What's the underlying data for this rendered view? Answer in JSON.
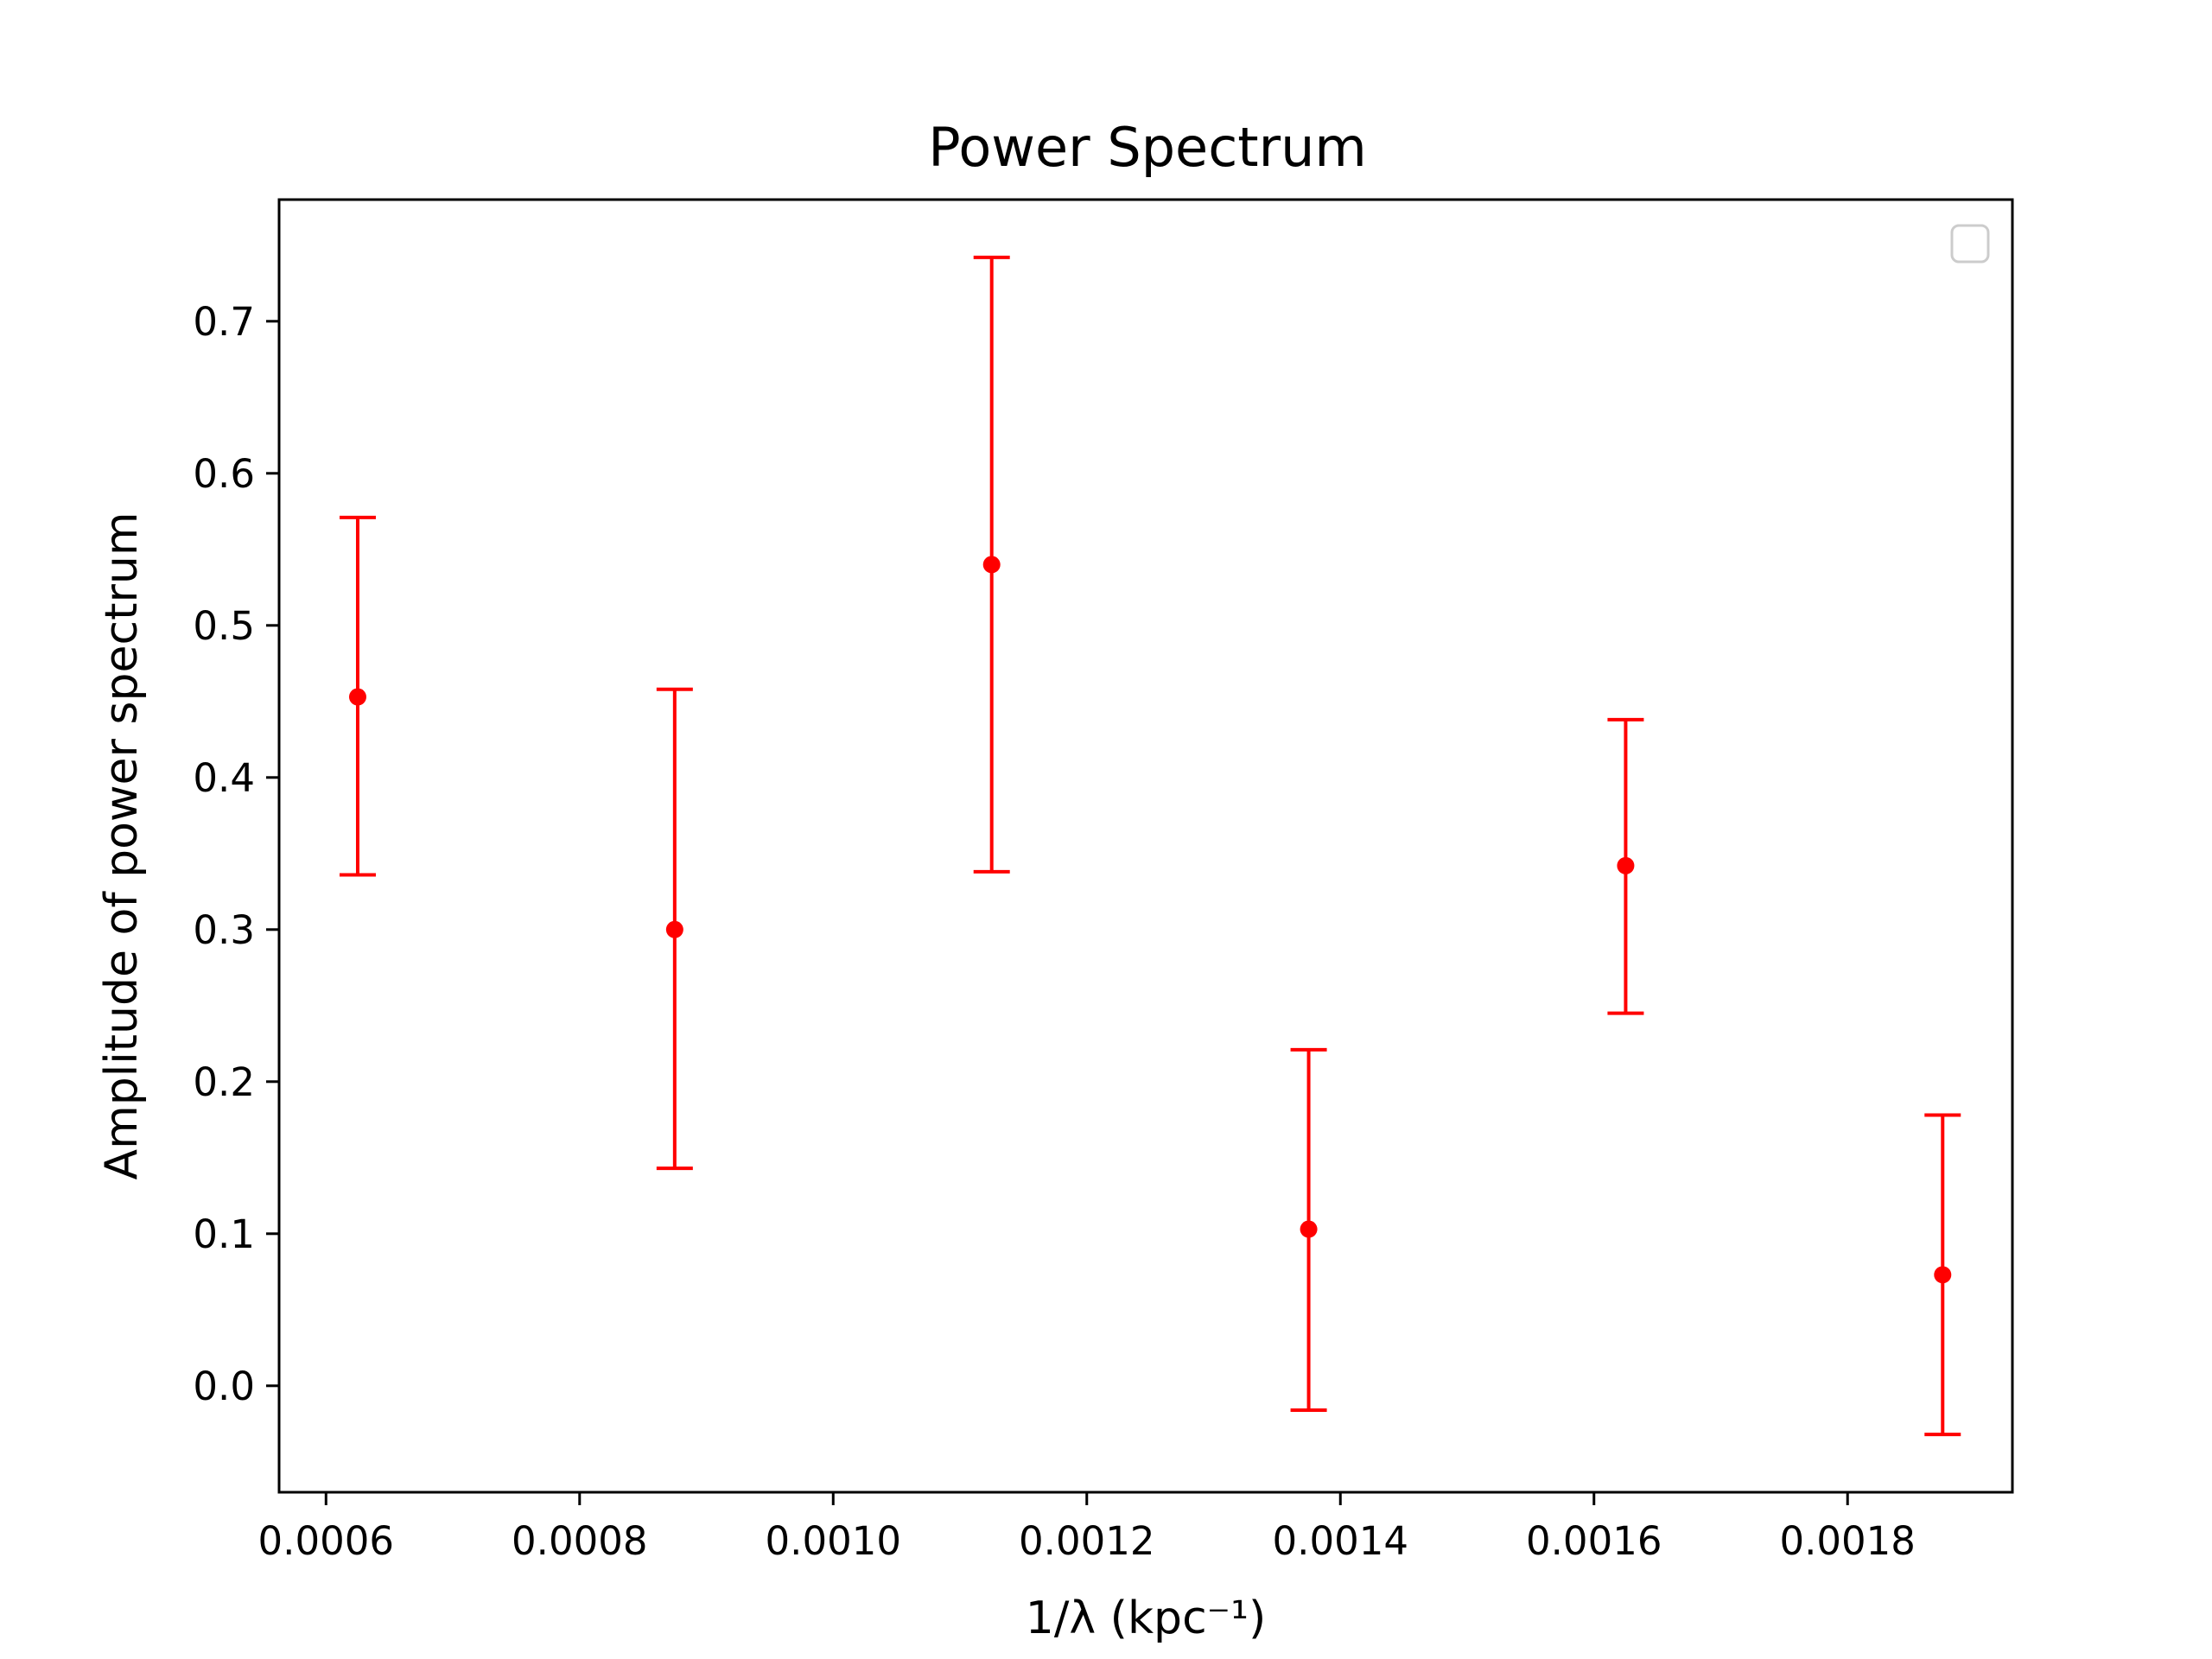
{
  "chart_data": {
    "type": "scatter",
    "title": "Power Spectrum",
    "xlabel": "1/λ (kpc⁻¹)",
    "ylabel": "Amplitude of power spectrum",
    "xlim": [
      0.000563,
      0.00193
    ],
    "ylim": [
      -0.07,
      0.78
    ],
    "xticks": [
      "0.0006",
      "0.0008",
      "0.0010",
      "0.0012",
      "0.0014",
      "0.0016",
      "0.0018"
    ],
    "xtick_values": [
      0.0006,
      0.0008,
      0.001,
      0.0012,
      0.0014,
      0.0016,
      0.0018
    ],
    "yticks": [
      "0.0",
      "0.1",
      "0.2",
      "0.3",
      "0.4",
      "0.5",
      "0.6",
      "0.7"
    ],
    "ytick_values": [
      0.0,
      0.1,
      0.2,
      0.3,
      0.4,
      0.5,
      0.6,
      0.7
    ],
    "grid": false,
    "legend": {
      "placement": "top-right",
      "entries": []
    },
    "series": [
      {
        "color": "#ff0000",
        "marker": "circle",
        "errorbar": true,
        "points": [
          {
            "x": 0.000625,
            "y": 0.453,
            "ylow": 0.336,
            "yhigh": 0.571
          },
          {
            "x": 0.000875,
            "y": 0.3,
            "ylow": 0.143,
            "yhigh": 0.458
          },
          {
            "x": 0.001125,
            "y": 0.54,
            "ylow": 0.338,
            "yhigh": 0.742
          },
          {
            "x": 0.001375,
            "y": 0.103,
            "ylow": -0.016,
            "yhigh": 0.221
          },
          {
            "x": 0.001625,
            "y": 0.342,
            "ylow": 0.245,
            "yhigh": 0.438
          },
          {
            "x": 0.001875,
            "y": 0.073,
            "ylow": -0.032,
            "yhigh": 0.178
          }
        ]
      }
    ]
  }
}
